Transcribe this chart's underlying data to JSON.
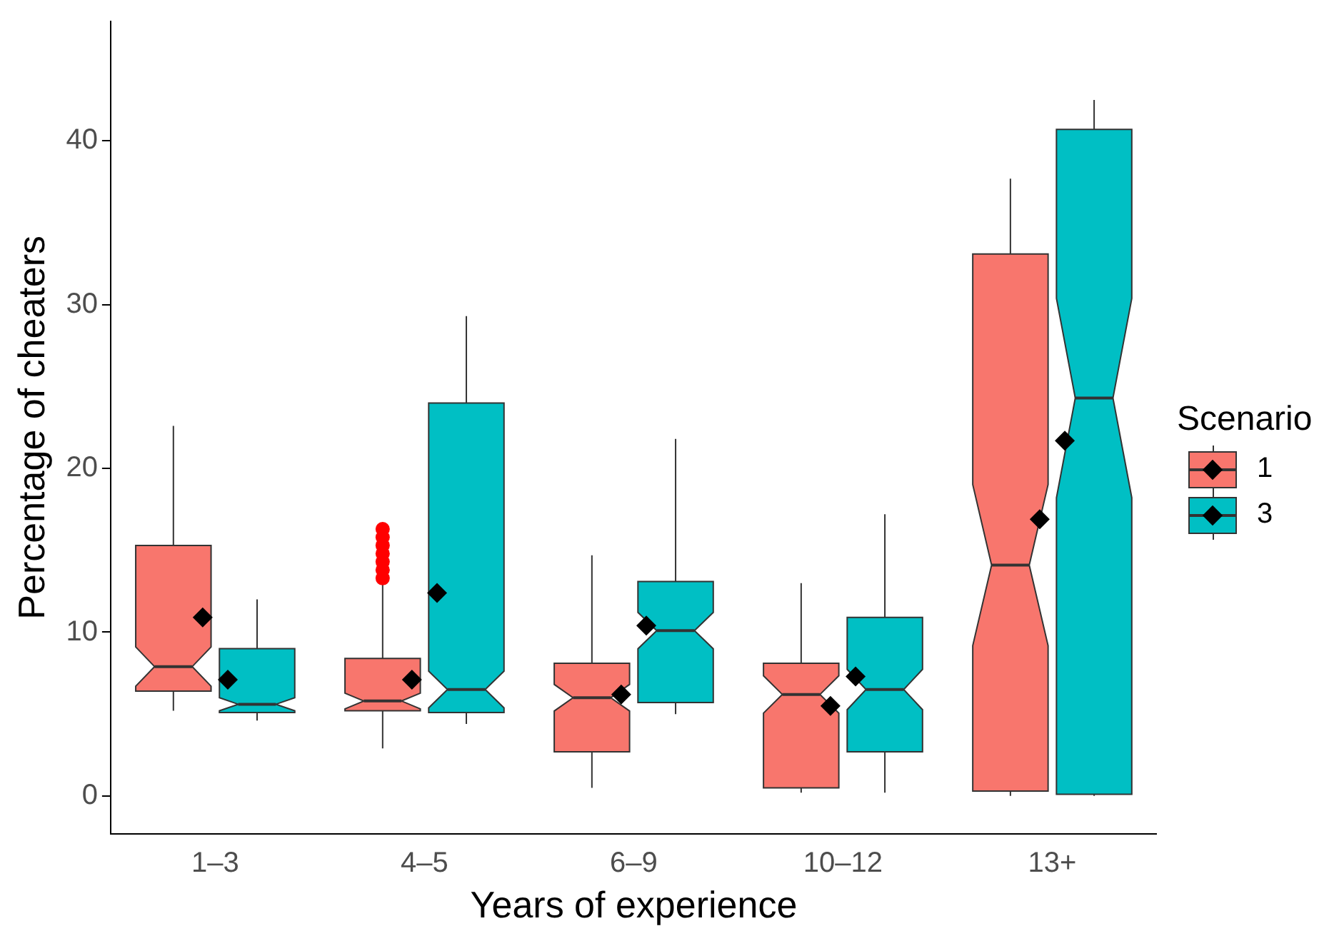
{
  "chart_data": {
    "type": "box",
    "xlabel": "Years of experience",
    "ylabel": "Percentage of cheaters",
    "legend_title": "Scenario",
    "legend": "right",
    "grid": false,
    "categories": [
      "1–3",
      "4–5",
      "6–9",
      "10–12",
      "13+"
    ],
    "ylim": [
      -2.3,
      47.3
    ],
    "yticks": [
      0,
      10,
      20,
      30,
      40
    ],
    "series": [
      {
        "name": "1",
        "color": "#f8766d",
        "boxes": [
          {
            "low": 5.2,
            "q1": 6.4,
            "median": 7.9,
            "q3": 15.3,
            "high": 22.6,
            "mean": 10.9
          },
          {
            "low": 2.9,
            "q1": 5.2,
            "median": 5.8,
            "q3": 8.4,
            "high": 12.9,
            "mean": 7.1,
            "outliers": [
              13.3,
              13.8,
              14.3,
              14.8,
              15.3,
              15.8,
              16.3
            ]
          },
          {
            "low": 0.5,
            "q1": 2.7,
            "median": 6.0,
            "q3": 8.1,
            "high": 14.7,
            "mean": 6.2
          },
          {
            "low": 0.2,
            "q1": 0.5,
            "median": 6.2,
            "q3": 8.1,
            "high": 13.0,
            "mean": 5.5
          },
          {
            "low": 0,
            "q1": 0.3,
            "median": 14.1,
            "q3": 33.1,
            "high": 37.7,
            "mean": 16.9
          }
        ]
      },
      {
        "name": "3",
        "color": "#00bfc4",
        "boxes": [
          {
            "low": 4.6,
            "q1": 5.1,
            "median": 5.6,
            "q3": 9.0,
            "high": 12.0,
            "mean": 7.1
          },
          {
            "low": 4.4,
            "q1": 5.1,
            "median": 6.5,
            "q3": 24.0,
            "high": 29.3,
            "mean": 12.4
          },
          {
            "low": 5.0,
            "q1": 5.7,
            "median": 10.1,
            "q3": 13.1,
            "high": 21.8,
            "mean": 10.4
          },
          {
            "low": 0.2,
            "q1": 2.7,
            "median": 6.5,
            "q3": 10.9,
            "high": 17.2,
            "mean": 7.3
          },
          {
            "low": 0,
            "q1": 0.1,
            "median": 24.3,
            "q3": 40.7,
            "high": 42.5,
            "mean": 21.7
          }
        ]
      }
    ]
  }
}
